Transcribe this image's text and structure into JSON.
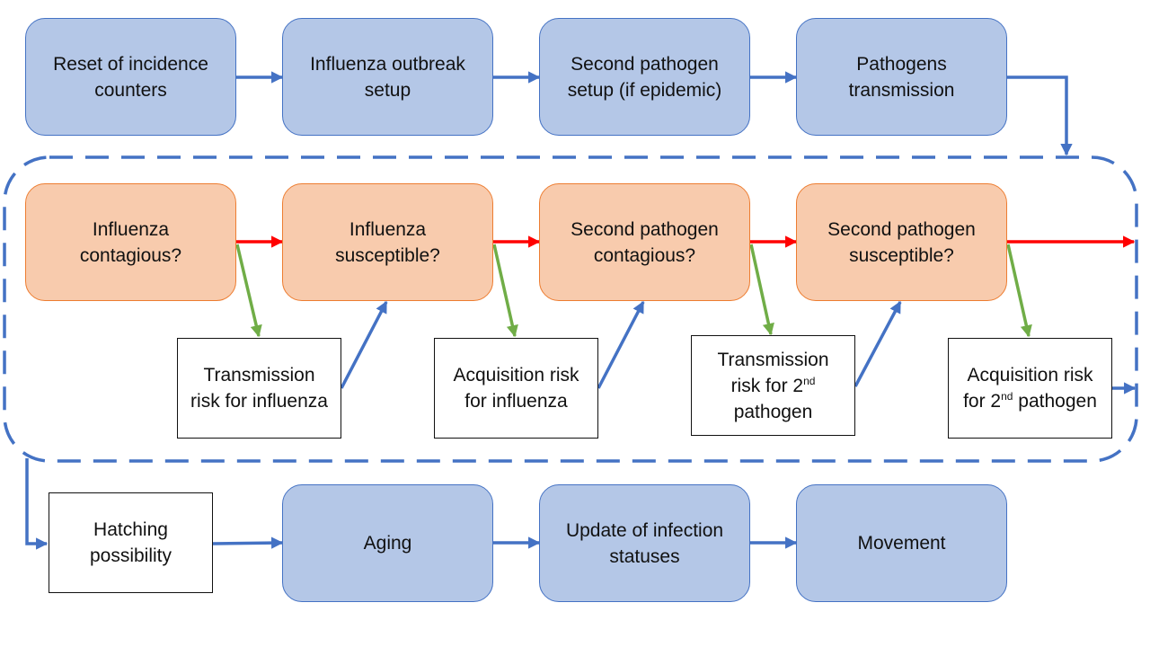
{
  "diagram": {
    "colors": {
      "process_fill": "#b4c7e7",
      "process_border": "#4472c4",
      "decision_fill": "#f8cbad",
      "decision_border": "#ed7d31",
      "flow_arrow": "#4472c4",
      "no_arrow": "#ff0000",
      "yes_arrow": "#70ad47",
      "loop_border": "#4472c4"
    },
    "top_row": {
      "reset": "Reset of incidence\ncounters",
      "influenza_setup": "Influenza outbreak\nsetup",
      "second_setup": "Second pathogen\nsetup (if epidemic)",
      "transmission": "Pathogens\ntransmission"
    },
    "loop": {
      "influenza_contagious": "Influenza\ncontagious?",
      "influenza_susceptible": "Influenza\nsusceptible?",
      "second_contagious": "Second pathogen\ncontagious?",
      "second_susceptible": "Second pathogen\nsusceptible?",
      "transmission_risk_influenza": "Transmission\nrisk for influenza",
      "acquisition_risk_influenza": "Acquisition risk\nfor influenza",
      "transmission_risk_2nd": {
        "line1": "Transmission",
        "line2_pre": "risk for 2",
        "sup": "nd",
        "line3": "pathogen"
      },
      "acquisition_risk_2nd": {
        "line1": "Acquisition risk",
        "line2_pre": "for 2",
        "sup": "nd",
        "line2_post": " pathogen"
      }
    },
    "bottom_row": {
      "hatching": "Hatching\npossibility",
      "aging": "Aging",
      "update": "Update of infection\nstatuses",
      "movement": "Movement"
    }
  }
}
